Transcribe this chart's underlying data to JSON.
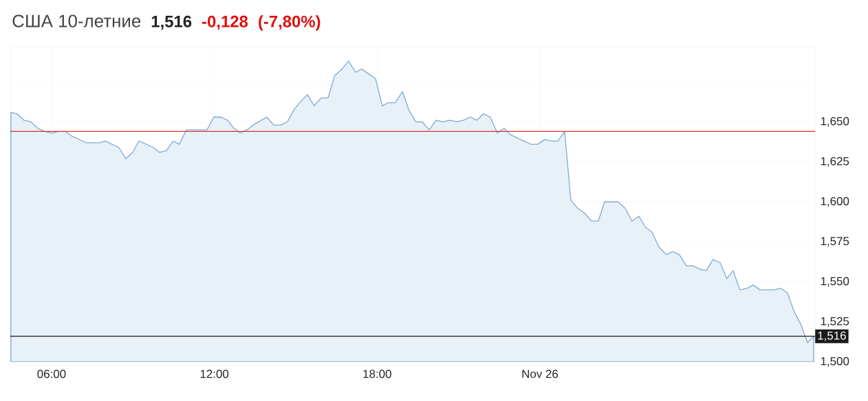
{
  "chart_data": {
    "type": "area",
    "title": "США 10-летние",
    "annotations": [
      "1,516",
      "-0,128",
      "(-7,80%)"
    ],
    "color": "#7eaad6",
    "x": [
      4.5,
      4.73,
      4.99,
      5.24,
      5.49,
      5.75,
      6.0,
      6.25,
      6.5,
      6.76,
      7.27,
      7.77,
      7.98,
      8.48,
      8.74,
      8.99,
      9.22,
      9.75,
      9.98,
      10.23,
      10.49,
      10.71,
      10.97,
      11.73,
      11.98,
      12.24,
      12.49,
      12.72,
      12.95,
      13.2,
      13.43,
      13.73,
      13.93,
      14.19,
      14.44,
      14.69,
      14.95,
      15.2,
      15.43,
      15.68,
      15.94,
      16.19,
      16.44,
      16.7,
      16.95,
      17.2,
      17.43,
      17.69,
      17.94,
      18.19,
      18.42,
      18.67,
      18.93,
      19.18,
      19.43,
      19.66,
      19.92,
      20.17,
      20.42,
      20.68,
      20.93,
      21.18,
      21.44,
      21.67,
      21.92,
      22.17,
      22.43,
      22.68,
      22.91,
      23.16,
      23.41,
      23.67,
      23.92,
      24.17,
      24.43,
      24.66,
      24.91,
      25.14,
      25.39,
      25.64,
      25.9,
      26.15,
      26.38,
      26.89,
      27.14,
      27.39,
      27.65,
      27.9,
      28.13,
      28.38,
      28.66,
      28.89,
      29.14,
      29.4,
      29.65,
      29.88,
      30.13,
      30.38,
      30.64,
      30.89,
      31.12,
      31.37,
      31.63,
      31.86,
      32.11,
      32.62,
      32.87,
      33.12,
      33.38,
      33.63,
      33.86,
      34.09
    ],
    "values": [
      1.656,
      1.655,
      1.651,
      1.65,
      1.646,
      1.644,
      1.643,
      1.644,
      1.644,
      1.641,
      1.637,
      1.637,
      1.638,
      1.634,
      1.627,
      1.631,
      1.638,
      1.634,
      1.631,
      1.632,
      1.638,
      1.636,
      1.645,
      1.645,
      1.653,
      1.653,
      1.651,
      1.646,
      1.643,
      1.645,
      1.648,
      1.651,
      1.653,
      1.648,
      1.648,
      1.65,
      1.658,
      1.663,
      1.667,
      1.66,
      1.665,
      1.665,
      1.679,
      1.683,
      1.688,
      1.681,
      1.683,
      1.68,
      1.677,
      1.66,
      1.662,
      1.662,
      1.669,
      1.657,
      1.65,
      1.65,
      1.645,
      1.651,
      1.65,
      1.651,
      1.65,
      1.651,
      1.653,
      1.651,
      1.655,
      1.653,
      1.643,
      1.646,
      1.642,
      1.64,
      1.638,
      1.636,
      1.636,
      1.639,
      1.638,
      1.638,
      1.644,
      1.601,
      1.596,
      1.593,
      1.588,
      1.588,
      1.6,
      1.6,
      1.596,
      1.588,
      1.591,
      1.584,
      1.581,
      1.572,
      1.567,
      1.569,
      1.567,
      1.56,
      1.56,
      1.558,
      1.557,
      1.564,
      1.562,
      1.552,
      1.557,
      1.545,
      1.546,
      1.548,
      1.545,
      1.545,
      1.546,
      1.543,
      1.531,
      1.523,
      1.512,
      1.516
    ],
    "xlim": [
      4.48,
      34.14
    ],
    "xticks": [
      {
        "value": 6,
        "label": "06:00"
      },
      {
        "value": 12,
        "label": "12:00"
      },
      {
        "value": 18,
        "label": "18:00"
      },
      {
        "value": 24,
        "label": "Nov 26"
      }
    ],
    "ylim": [
      1.5,
      1.697
    ],
    "yticks": [
      {
        "value": 1.5,
        "label": "1,500"
      },
      {
        "value": 1.525,
        "label": "1,525"
      },
      {
        "value": 1.55,
        "label": "1,550"
      },
      {
        "value": 1.575,
        "label": "1,575"
      },
      {
        "value": 1.6,
        "label": "1,600"
      },
      {
        "value": 1.625,
        "label": "1,625"
      },
      {
        "value": 1.65,
        "label": "1,650"
      },
      {
        "value": 1.675,
        "label": null
      }
    ],
    "ref_lines": [
      {
        "axis": "y",
        "value": 1.644,
        "color": "#d9302c"
      },
      {
        "axis": "y",
        "value": 1.516,
        "color": "#1a1a1a",
        "label": "1,516"
      }
    ],
    "grid": true
  }
}
